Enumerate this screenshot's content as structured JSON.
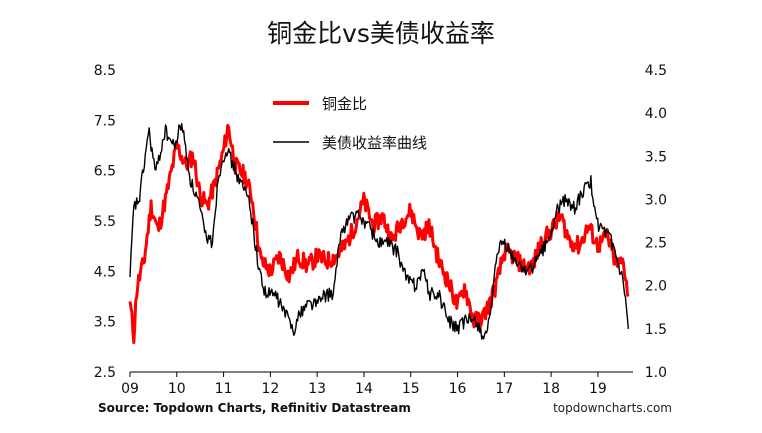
{
  "chart_data": {
    "type": "line",
    "title": "铜金比vs美债收益率",
    "source": "Source: Topdown Charts, Refinitiv Datastream",
    "watermark": "topdowncharts.com",
    "legend_position": "top-center",
    "x_ticks": [
      "09",
      "10",
      "11",
      "12",
      "13",
      "14",
      "15",
      "16",
      "17",
      "18",
      "19"
    ],
    "xlim": [
      2009.0,
      2019.75
    ],
    "y_left": {
      "range": [
        2.5,
        8.5
      ],
      "ticks": [
        "2.5",
        "3.5",
        "4.5",
        "5.5",
        "6.5",
        "7.5",
        "8.5"
      ]
    },
    "y_right": {
      "range": [
        1.0,
        4.5
      ],
      "ticks": [
        "1.0",
        "1.5",
        "2.0",
        "2.5",
        "3.0",
        "3.5",
        "4.0",
        "4.5"
      ]
    },
    "series": [
      {
        "name": "铜金比",
        "axis": "left",
        "color": "#ff0000",
        "x": [
          2009.0,
          2009.08,
          2009.15,
          2009.3,
          2009.45,
          2009.6,
          2009.8,
          2010.0,
          2010.2,
          2010.35,
          2010.5,
          2010.65,
          2010.8,
          2011.0,
          2011.1,
          2011.25,
          2011.45,
          2011.6,
          2011.8,
          2012.0,
          2012.2,
          2012.4,
          2012.6,
          2012.8,
          2013.0,
          2013.2,
          2013.4,
          2013.6,
          2013.8,
          2014.0,
          2014.2,
          2014.4,
          2014.6,
          2014.8,
          2015.0,
          2015.2,
          2015.4,
          2015.6,
          2015.8,
          2016.0,
          2016.15,
          2016.35,
          2016.55,
          2016.7,
          2016.85,
          2017.0,
          2017.2,
          2017.4,
          2017.6,
          2017.8,
          2018.0,
          2018.2,
          2018.4,
          2018.6,
          2018.8,
          2019.0,
          2019.2,
          2019.4,
          2019.55,
          2019.65
        ],
        "values": [
          3.9,
          3.2,
          4.2,
          4.7,
          5.8,
          5.3,
          6.1,
          7.0,
          6.6,
          6.8,
          6.0,
          5.8,
          6.2,
          6.9,
          7.4,
          6.6,
          6.4,
          6.0,
          4.7,
          4.5,
          4.8,
          4.4,
          4.8,
          4.6,
          4.8,
          4.7,
          4.8,
          5.0,
          5.4,
          5.9,
          5.4,
          5.6,
          5.1,
          5.5,
          5.7,
          5.2,
          5.4,
          4.7,
          4.3,
          3.8,
          4.2,
          3.5,
          3.6,
          3.9,
          4.3,
          4.9,
          4.8,
          4.6,
          4.6,
          5.1,
          5.3,
          5.6,
          5.1,
          5.0,
          5.4,
          5.0,
          5.2,
          4.6,
          4.7,
          4.0
        ]
      },
      {
        "name": "美债收益率曲线",
        "axis": "right",
        "color": "#000000",
        "x": [
          2009.0,
          2009.08,
          2009.2,
          2009.4,
          2009.55,
          2009.75,
          2009.95,
          2010.1,
          2010.3,
          2010.45,
          2010.6,
          2010.75,
          2010.9,
          2011.05,
          2011.2,
          2011.35,
          2011.55,
          2011.75,
          2011.9,
          2012.1,
          2012.3,
          2012.5,
          2012.65,
          2012.8,
          2013.0,
          2013.2,
          2013.35,
          2013.5,
          2013.7,
          2013.9,
          2014.1,
          2014.3,
          2014.5,
          2014.7,
          2014.9,
          2015.1,
          2015.25,
          2015.4,
          2015.6,
          2015.8,
          2016.0,
          2016.2,
          2016.4,
          2016.55,
          2016.7,
          2016.85,
          2017.0,
          2017.2,
          2017.4,
          2017.6,
          2017.8,
          2018.0,
          2018.15,
          2018.3,
          2018.5,
          2018.7,
          2018.85,
          2019.0,
          2019.15,
          2019.3,
          2019.45,
          2019.55,
          2019.65
        ],
        "values": [
          2.1,
          2.9,
          3.0,
          3.8,
          3.3,
          3.8,
          3.6,
          3.9,
          3.2,
          3.0,
          2.6,
          2.5,
          3.3,
          3.6,
          3.4,
          3.2,
          3.0,
          2.2,
          1.9,
          1.9,
          1.7,
          1.5,
          1.7,
          1.8,
          1.8,
          1.9,
          1.9,
          2.6,
          2.8,
          2.8,
          2.7,
          2.5,
          2.5,
          2.4,
          2.1,
          2.0,
          2.2,
          1.9,
          1.9,
          1.6,
          1.5,
          1.6,
          1.6,
          1.4,
          1.6,
          2.4,
          2.5,
          2.3,
          2.2,
          2.2,
          2.4,
          2.6,
          2.9,
          3.0,
          2.9,
          3.1,
          3.2,
          2.7,
          2.6,
          2.5,
          2.2,
          2.0,
          1.5
        ]
      }
    ]
  }
}
